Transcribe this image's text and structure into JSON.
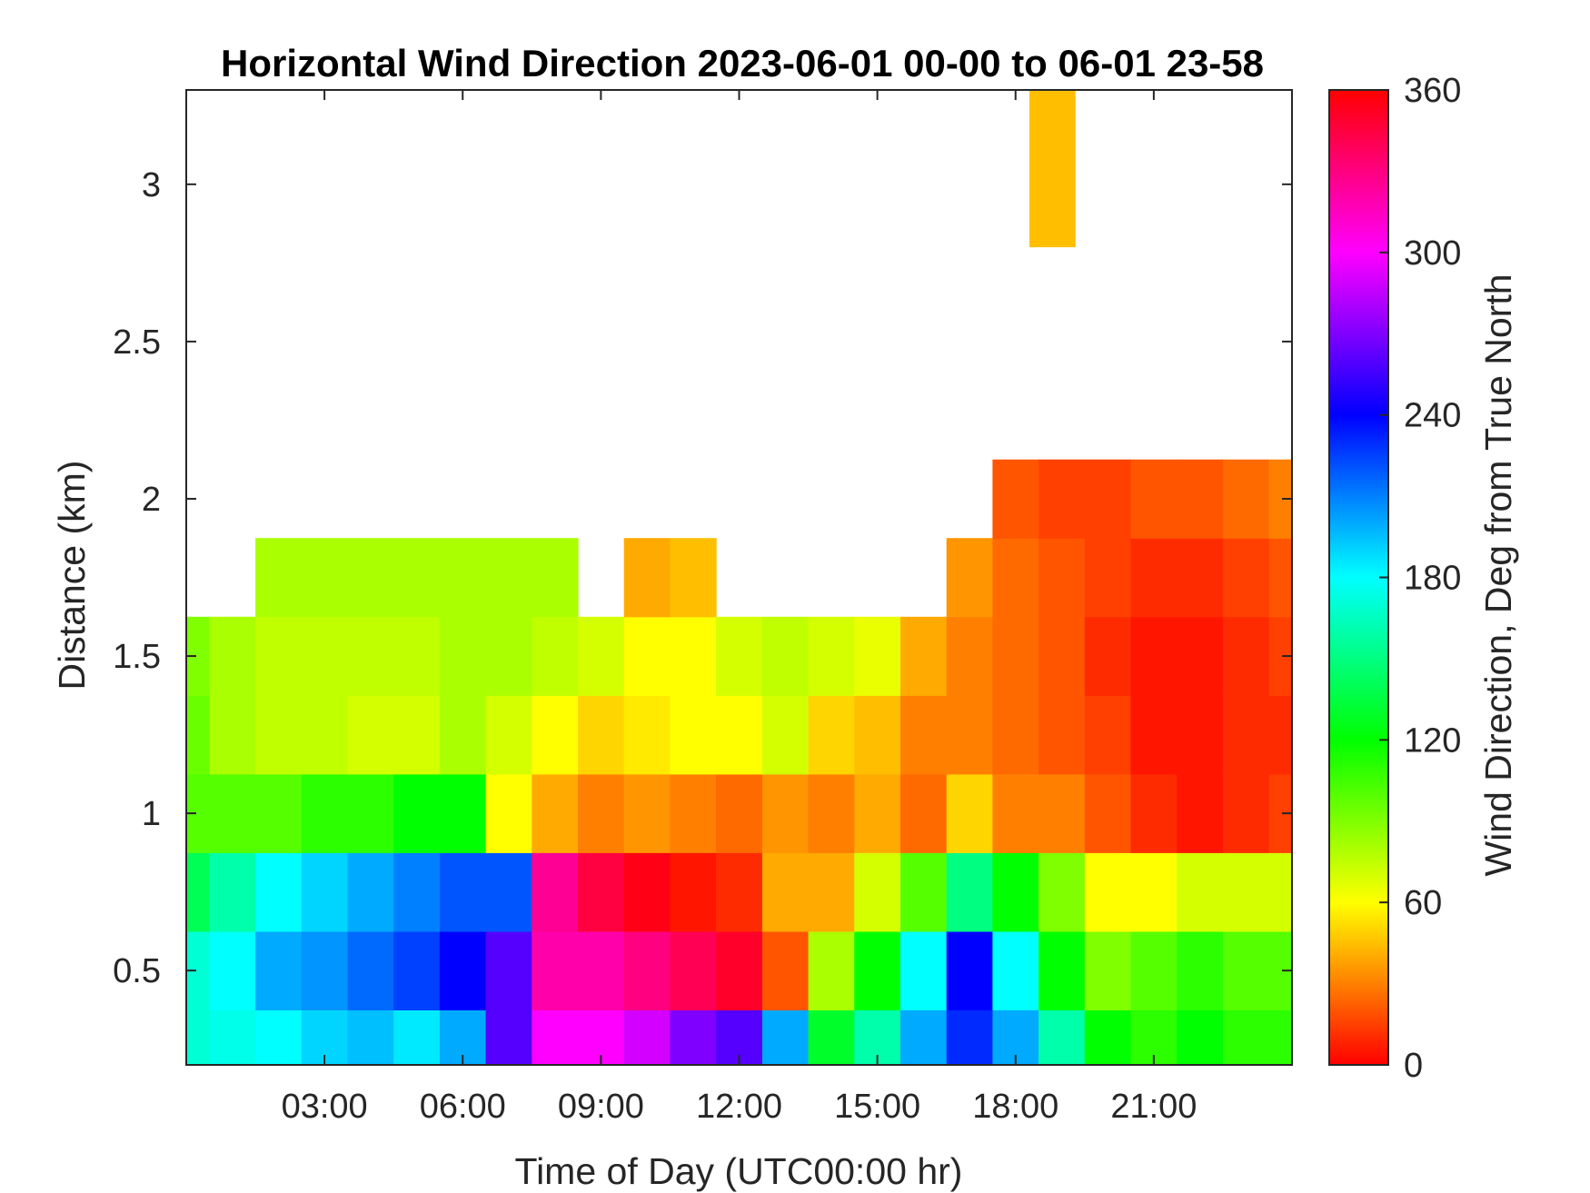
{
  "chart_data": {
    "type": "heatmap",
    "title": "Horizontal Wind Direction 2023-06-01 00-00 to 06-01 23-58",
    "xlabel": "Time of Day (UTC00:00 hr)",
    "ylabel": "Distance (km)",
    "xlim_hours": [
      0,
      24
    ],
    "ylim": [
      0.2,
      3.3
    ],
    "x_ticks": [
      {
        "hour": 3,
        "label": "03:00"
      },
      {
        "hour": 6,
        "label": "06:00"
      },
      {
        "hour": 9,
        "label": "09:00"
      },
      {
        "hour": 12,
        "label": "12:00"
      },
      {
        "hour": 15,
        "label": "15:00"
      },
      {
        "hour": 18,
        "label": "18:00"
      },
      {
        "hour": 21,
        "label": "21:00"
      }
    ],
    "y_ticks": [
      {
        "value": 0.5,
        "label": "0.5"
      },
      {
        "value": 1,
        "label": "1"
      },
      {
        "value": 1.5,
        "label": "1.5"
      },
      {
        "value": 2,
        "label": "2"
      },
      {
        "value": 2.5,
        "label": "2.5"
      },
      {
        "value": 3,
        "label": "3"
      }
    ],
    "colorbar": {
      "label": "Wind Direction, Deg from True North",
      "range": [
        0,
        360
      ],
      "ticks": [
        {
          "value": 0,
          "label": "0"
        },
        {
          "value": 60,
          "label": "60"
        },
        {
          "value": 120,
          "label": "120"
        },
        {
          "value": 180,
          "label": "180"
        },
        {
          "value": 240,
          "label": "240"
        },
        {
          "value": 300,
          "label": "300"
        },
        {
          "value": 360,
          "label": "360"
        }
      ],
      "colormap": "hsv"
    },
    "time_hours": [
      0,
      1,
      2,
      3,
      4,
      5,
      6,
      7,
      8,
      9,
      10,
      11,
      12,
      13,
      14,
      15,
      16,
      17,
      18,
      19,
      20,
      21,
      22,
      23,
      24
    ],
    "distance_km": [
      0.25,
      0.5,
      0.75,
      1.0,
      1.25,
      1.5,
      1.75,
      2.0
    ],
    "direction_deg": [
      [
        170,
        175,
        180,
        190,
        195,
        185,
        200,
        260,
        300,
        300,
        290,
        270,
        260,
        200,
        130,
        160,
        200,
        230,
        200,
        160,
        120,
        110,
        120,
        110,
        110
      ],
      [
        170,
        180,
        200,
        205,
        215,
        225,
        240,
        260,
        320,
        320,
        330,
        340,
        350,
        20,
        80,
        120,
        180,
        240,
        180,
        120,
        90,
        100,
        110,
        100,
        100
      ],
      [
        140,
        160,
        180,
        190,
        200,
        210,
        220,
        220,
        325,
        345,
        355,
        5,
        10,
        40,
        40,
        70,
        100,
        150,
        120,
        90,
        60,
        60,
        70,
        70,
        70
      ],
      [
        100,
        100,
        100,
        110,
        110,
        120,
        120,
        60,
        40,
        30,
        35,
        30,
        25,
        35,
        30,
        40,
        25,
        50,
        30,
        30,
        20,
        10,
        5,
        10,
        15
      ],
      [
        95,
        80,
        75,
        75,
        70,
        70,
        80,
        70,
        60,
        50,
        55,
        60,
        60,
        70,
        50,
        45,
        30,
        30,
        25,
        20,
        15,
        5,
        5,
        10,
        10
      ],
      [
        90,
        80,
        75,
        75,
        75,
        75,
        80,
        80,
        75,
        70,
        60,
        60,
        70,
        75,
        70,
        65,
        40,
        30,
        25,
        20,
        10,
        5,
        5,
        10,
        15
      ],
      [
        null,
        null,
        80,
        80,
        80,
        80,
        80,
        80,
        80,
        null,
        40,
        45,
        null,
        null,
        null,
        null,
        null,
        35,
        25,
        20,
        15,
        10,
        10,
        15,
        20
      ],
      [
        null,
        null,
        null,
        null,
        null,
        null,
        null,
        null,
        null,
        null,
        null,
        null,
        null,
        null,
        null,
        null,
        null,
        null,
        20,
        15,
        15,
        20,
        20,
        25,
        30
      ]
    ],
    "upper_patch": {
      "time_hours": [
        18.3,
        19.3
      ],
      "distance_km": [
        2.8,
        3.3
      ],
      "direction_deg": 45
    }
  }
}
